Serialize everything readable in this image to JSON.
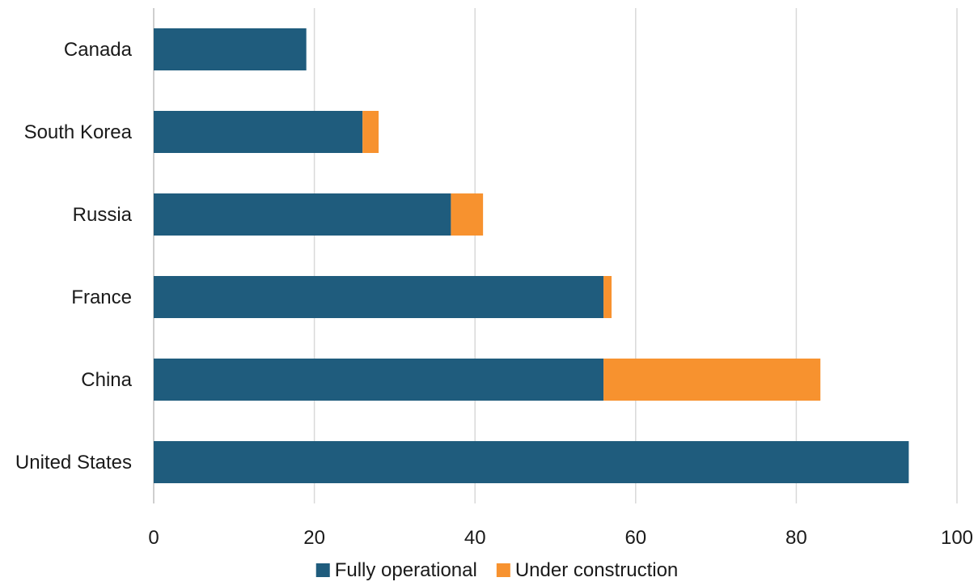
{
  "chart_data": {
    "type": "bar",
    "orientation": "horizontal",
    "stacked": true,
    "title": "",
    "xlabel": "",
    "ylabel": "",
    "categories": [
      "Canada",
      "South Korea",
      "Russia",
      "France",
      "China",
      "United States"
    ],
    "series": [
      {
        "name": "Fully operational",
        "color": "#1f5c7d",
        "values": [
          19,
          26,
          37,
          56,
          56,
          94
        ]
      },
      {
        "name": "Under construction",
        "color": "#f7922f",
        "values": [
          0,
          2,
          4,
          1,
          27,
          0
        ]
      }
    ],
    "xlim": [
      0,
      100
    ],
    "xticks": [
      "0",
      "20",
      "40",
      "60",
      "80",
      "100"
    ],
    "grid": true,
    "legend_position": "bottom"
  }
}
